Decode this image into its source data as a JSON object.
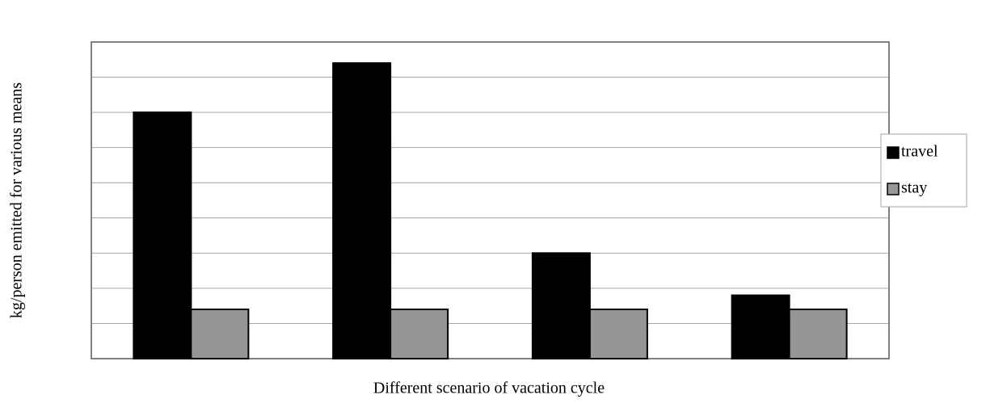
{
  "chart_data": {
    "type": "bar",
    "xlabel": "Different scenario of vacation cycle",
    "ylabel": "kg/person emitted for various means",
    "categories": [
      null,
      null,
      null,
      null
    ],
    "series": [
      {
        "name": "travel",
        "color": "#000000",
        "values": [
          7.0,
          8.4,
          3.0,
          1.8
        ]
      },
      {
        "name": "stay",
        "color": "#969696",
        "values": [
          1.4,
          1.4,
          1.4,
          1.4
        ]
      }
    ],
    "ylim": [
      0,
      9
    ],
    "yticks": [
      0,
      1,
      2,
      3,
      4,
      5,
      6,
      7,
      8,
      9
    ],
    "grid": true,
    "legend": "right"
  }
}
